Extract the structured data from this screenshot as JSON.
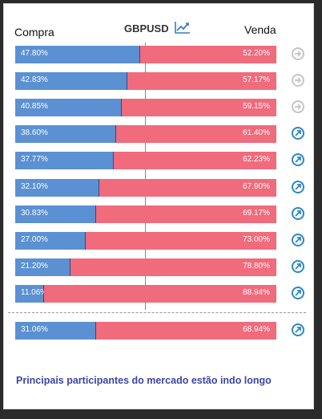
{
  "header": {
    "buy_label": "Compra",
    "symbol": "GBPUSD",
    "sell_label": "Venda",
    "chart_icon": "trend-chart-icon"
  },
  "colors": {
    "buy": "#5b90d3",
    "sell": "#f06b7c",
    "arrow_active": "#2f86c6",
    "arrow_neutral": "#c6c6c6",
    "footer_text": "#3c45a5"
  },
  "rows": [
    {
      "buy": "47.80%",
      "sell": "52.20%",
      "buy_pct": 47.8,
      "arrow": "neutral"
    },
    {
      "buy": "42.83%",
      "sell": "57.17%",
      "buy_pct": 42.83,
      "arrow": "neutral"
    },
    {
      "buy": "40.85%",
      "sell": "59.15%",
      "buy_pct": 40.85,
      "arrow": "neutral"
    },
    {
      "buy": "38.60%",
      "sell": "61.40%",
      "buy_pct": 38.6,
      "arrow": "up-right"
    },
    {
      "buy": "37.77%",
      "sell": "62.23%",
      "buy_pct": 37.77,
      "arrow": "up-right"
    },
    {
      "buy": "32.10%",
      "sell": "67.90%",
      "buy_pct": 32.1,
      "arrow": "up-right"
    },
    {
      "buy": "30.83%",
      "sell": "69.17%",
      "buy_pct": 30.83,
      "arrow": "up-right"
    },
    {
      "buy": "27.00%",
      "sell": "73.00%",
      "buy_pct": 27.0,
      "arrow": "up-right"
    },
    {
      "buy": "21.20%",
      "sell": "78.80%",
      "buy_pct": 21.2,
      "arrow": "up-right"
    },
    {
      "buy": "11.06%",
      "sell": "88.94%",
      "buy_pct": 11.06,
      "arrow": "up-right"
    }
  ],
  "summary": {
    "buy": "31.06%",
    "sell": "68.94%",
    "buy_pct": 31.06,
    "arrow": "up-right"
  },
  "footer": {
    "text": "Principais participantes do mercado estão indo longo"
  }
}
